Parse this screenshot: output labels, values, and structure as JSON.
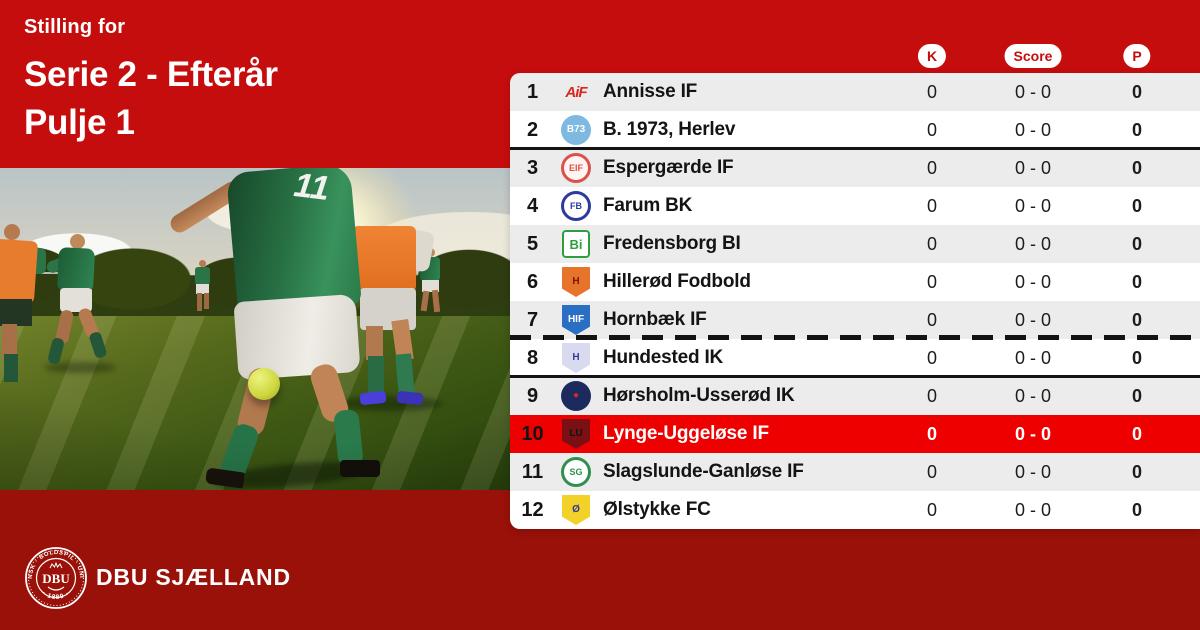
{
  "colors": {
    "background_red": "#c60d0d",
    "highlight_red": "#ef0000",
    "footer_red": "#9a1109",
    "row_alt_gray": "#ececec",
    "badge_text_red": "#c60d0d"
  },
  "header": {
    "eyebrow": "Stilling for",
    "title_line1": "Serie 2 - Efterår",
    "title_line2": "Pulje 1"
  },
  "photo": {
    "jersey_number": "11"
  },
  "footer": {
    "org_name": "DBU SJÆLLAND",
    "seal_top_text": "DANSK · BOLDSPIL · UNION",
    "seal_bottom_text": "· 1889 ·",
    "seal_center_text": "DBU"
  },
  "table": {
    "columns": [
      {
        "key": "k",
        "label": "K"
      },
      {
        "key": "score",
        "label": "Score"
      },
      {
        "key": "p",
        "label": "P"
      }
    ],
    "rows": [
      {
        "rank": "1",
        "team": "Annisse IF",
        "k": "0",
        "score": "0 - 0",
        "p": "0",
        "highlighted": false,
        "logo": {
          "icon": "annisse-if-logo",
          "shape": "wordmark",
          "fg": "#d42b20",
          "text": "AiF"
        }
      },
      {
        "rank": "2",
        "team": "B. 1973, Herlev",
        "k": "0",
        "score": "0 - 0",
        "p": "0",
        "highlighted": false,
        "logo": {
          "icon": "b1973-herlev-logo",
          "shape": "circle",
          "bg": "#7db9e0",
          "fg": "#ffffff",
          "text": "B73"
        }
      },
      {
        "rank": "3",
        "team": "Espergærde IF",
        "k": "0",
        "score": "0 - 0",
        "p": "0",
        "highlighted": false,
        "logo": {
          "icon": "espergaerde-if-logo",
          "shape": "ring",
          "bg": "#fff4f2",
          "border": "#d9534a",
          "fg": "#d9534a",
          "text": "EIF"
        }
      },
      {
        "rank": "4",
        "team": "Farum BK",
        "k": "0",
        "score": "0 - 0",
        "p": "0",
        "highlighted": false,
        "logo": {
          "icon": "farum-bk-logo",
          "shape": "ring",
          "bg": "#ffffff",
          "border": "#2b3a9e",
          "fg": "#2b3a9e",
          "text": "FB"
        }
      },
      {
        "rank": "5",
        "team": "Fredensborg BI",
        "k": "0",
        "score": "0 - 0",
        "p": "0",
        "highlighted": false,
        "logo": {
          "icon": "fredensborg-bi-logo",
          "shape": "square",
          "bg": "#ffffff",
          "border": "#2f9e3f",
          "fg": "#2f9e3f",
          "text": "Bi"
        }
      },
      {
        "rank": "6",
        "team": "Hillerød Fodbold",
        "k": "0",
        "score": "0 - 0",
        "p": "0",
        "highlighted": false,
        "logo": {
          "icon": "hilleroed-fodbold-logo",
          "shape": "shield",
          "bg": "#e8742c",
          "fg": "#7a1010",
          "text": "H"
        }
      },
      {
        "rank": "7",
        "team": "Hornbæk IF",
        "k": "0",
        "score": "0 - 0",
        "p": "0",
        "highlighted": false,
        "logo": {
          "icon": "hornbaek-if-logo",
          "shape": "shield",
          "bg": "#2a6fc4",
          "fg": "#ffffff",
          "text": "HIF"
        }
      },
      {
        "rank": "8",
        "team": "Hundested IK",
        "k": "0",
        "score": "0 - 0",
        "p": "0",
        "highlighted": false,
        "logo": {
          "icon": "hundested-ik-logo",
          "shape": "shield",
          "bg": "#d8daf0",
          "fg": "#3a3a8c",
          "text": "H"
        }
      },
      {
        "rank": "9",
        "team": "Hørsholm-Usserød IK",
        "k": "0",
        "score": "0 - 0",
        "p": "0",
        "highlighted": false,
        "logo": {
          "icon": "hoersholm-usseroed-ik-logo",
          "shape": "circle",
          "bg": "#1d2a5e",
          "fg": "#d42b20",
          "text": "●"
        }
      },
      {
        "rank": "10",
        "team": "Lynge-Uggeløse IF",
        "k": "0",
        "score": "0 - 0",
        "p": "0",
        "highlighted": true,
        "logo": {
          "icon": "lynge-uggeloese-if-logo",
          "shape": "shield",
          "bg": "#7a1014",
          "fg": "#141414",
          "text": "LU"
        }
      },
      {
        "rank": "11",
        "team": "Slagslunde-Ganløse IF",
        "k": "0",
        "score": "0 - 0",
        "p": "0",
        "highlighted": false,
        "logo": {
          "icon": "slagslunde-ganloese-if-logo",
          "shape": "ring",
          "bg": "#ffffff",
          "border": "#2f8f4f",
          "fg": "#2f8f4f",
          "text": "SG"
        }
      },
      {
        "rank": "12",
        "team": "Ølstykke FC",
        "k": "0",
        "score": "0 - 0",
        "p": "0",
        "highlighted": false,
        "logo": {
          "icon": "oelstykke-fc-logo",
          "shape": "shield",
          "bg": "#f2d229",
          "fg": "#2b3a9e",
          "text": "Ø"
        }
      }
    ],
    "separators": [
      {
        "after_rank": "2",
        "style": "solid"
      },
      {
        "after_rank": "7",
        "style": "dashed"
      },
      {
        "after_rank": "8",
        "style": "solid"
      }
    ]
  }
}
